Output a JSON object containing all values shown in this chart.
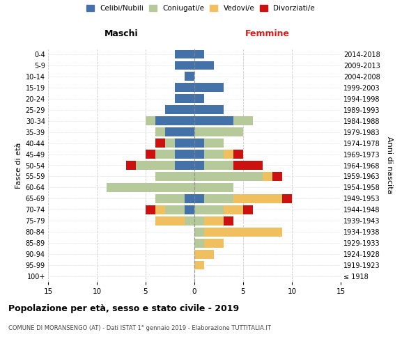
{
  "age_groups": [
    "100+",
    "95-99",
    "90-94",
    "85-89",
    "80-84",
    "75-79",
    "70-74",
    "65-69",
    "60-64",
    "55-59",
    "50-54",
    "45-49",
    "40-44",
    "35-39",
    "30-34",
    "25-29",
    "20-24",
    "15-19",
    "10-14",
    "5-9",
    "0-4"
  ],
  "birth_years": [
    "≤ 1918",
    "1919-1923",
    "1924-1928",
    "1929-1933",
    "1934-1938",
    "1939-1943",
    "1944-1948",
    "1949-1953",
    "1954-1958",
    "1959-1963",
    "1964-1968",
    "1969-1973",
    "1974-1978",
    "1979-1983",
    "1984-1988",
    "1989-1993",
    "1994-1998",
    "1999-2003",
    "2004-2008",
    "2009-2013",
    "2014-2018"
  ],
  "colors": {
    "celibi": "#4472a8",
    "coniugati": "#b5c99a",
    "vedovi": "#f0c060",
    "divorziati": "#cc1111"
  },
  "legend_labels": [
    "Celibi/Nubili",
    "Coniugati/e",
    "Vedovi/e",
    "Divorziati/e"
  ],
  "maschi": {
    "celibi": [
      0,
      0,
      0,
      0,
      0,
      0,
      1,
      1,
      0,
      0,
      2,
      2,
      2,
      3,
      4,
      3,
      2,
      2,
      1,
      2,
      2
    ],
    "coniugati": [
      0,
      0,
      0,
      0,
      0,
      1,
      2,
      3,
      9,
      4,
      4,
      2,
      1,
      1,
      1,
      0,
      0,
      0,
      0,
      0,
      0
    ],
    "vedovi": [
      0,
      0,
      0,
      0,
      0,
      3,
      1,
      0,
      0,
      0,
      0,
      0,
      0,
      0,
      0,
      0,
      0,
      0,
      0,
      0,
      0
    ],
    "divorziati": [
      0,
      0,
      0,
      0,
      0,
      0,
      1,
      0,
      0,
      0,
      1,
      1,
      1,
      0,
      0,
      0,
      0,
      0,
      0,
      0,
      0
    ]
  },
  "femmine": {
    "nubili": [
      0,
      0,
      0,
      0,
      0,
      0,
      0,
      1,
      0,
      0,
      1,
      1,
      1,
      0,
      4,
      3,
      1,
      3,
      0,
      2,
      1
    ],
    "coniugate": [
      0,
      0,
      0,
      1,
      1,
      1,
      3,
      3,
      4,
      7,
      3,
      2,
      2,
      5,
      2,
      0,
      0,
      0,
      0,
      0,
      0
    ],
    "vedove": [
      0,
      1,
      2,
      2,
      8,
      2,
      2,
      5,
      0,
      1,
      0,
      1,
      0,
      0,
      0,
      0,
      0,
      0,
      0,
      0,
      0
    ],
    "divorziate": [
      0,
      0,
      0,
      0,
      0,
      1,
      1,
      1,
      0,
      1,
      3,
      1,
      0,
      0,
      0,
      0,
      0,
      0,
      0,
      0,
      0
    ]
  },
  "xlim": 15,
  "title": "Popolazione per età, sesso e stato civile - 2019",
  "subtitle": "COMUNE DI MORANSENGO (AT) - Dati ISTAT 1° gennaio 2019 - Elaborazione TUTTITALIA.IT",
  "ylabel_left": "Fasce di età",
  "ylabel_right": "Anni di nascita",
  "xlabel_maschi": "Maschi",
  "xlabel_femmine": "Femmine"
}
